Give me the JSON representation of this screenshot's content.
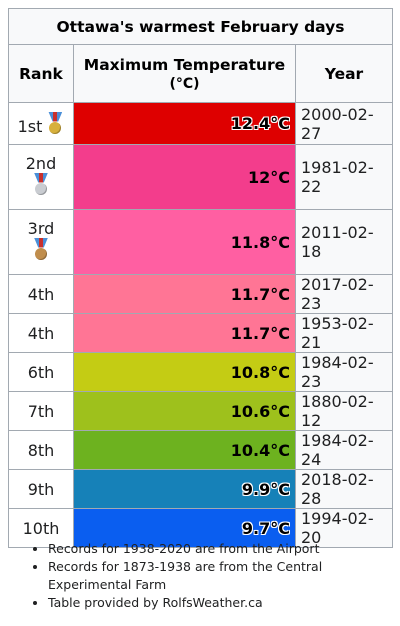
{
  "table": {
    "title": "Ottawa's warmest February days",
    "headers": {
      "rank": "Rank",
      "temp_line1": "Maximum Temperature",
      "temp_line2": "(°C)",
      "year": "Year"
    },
    "rows": [
      {
        "rank": "1st",
        "medal": "gold-medal-icon",
        "temp": "12.4°C",
        "date": "2000-02-27",
        "color": "#de0000"
      },
      {
        "rank": "2nd",
        "medal": "silver-medal-icon",
        "temp": "12°C",
        "date": "1981-02-22",
        "color": "#f33d8c"
      },
      {
        "rank": "3rd",
        "medal": "bronze-medal-icon",
        "temp": "11.8°C",
        "date": "2011-02-18",
        "color": "#ff5fa2"
      },
      {
        "rank": "4th",
        "temp": "11.7°C",
        "date": "2017-02-23",
        "color": "#ff7595"
      },
      {
        "rank": "4th",
        "temp": "11.7°C",
        "date": "1953-02-21",
        "color": "#ff7595"
      },
      {
        "rank": "6th",
        "temp": "10.8°C",
        "date": "1984-02-23",
        "color": "#c4cc14"
      },
      {
        "rank": "7th",
        "temp": "10.6°C",
        "date": "1880-02-12",
        "color": "#9ec11c"
      },
      {
        "rank": "8th",
        "temp": "10.4°C",
        "date": "1984-02-24",
        "color": "#6db21f"
      },
      {
        "rank": "9th",
        "temp": "9.9°C",
        "date": "2018-02-28",
        "color": "#1681b8"
      },
      {
        "rank": "10th",
        "temp": "9.7°C",
        "date": "1994-02-20",
        "color": "#0a5ef0"
      }
    ]
  },
  "medal_colors": {
    "gold": "#d7b03c",
    "silver": "#c9ccd1",
    "bronze": "#c08d4c"
  },
  "notes": [
    "Records for 1938-2020 are from the Airport",
    "Records for 1873-1938 are from the Central Experimental Farm",
    "Table provided by RolfsWeather.ca"
  ]
}
